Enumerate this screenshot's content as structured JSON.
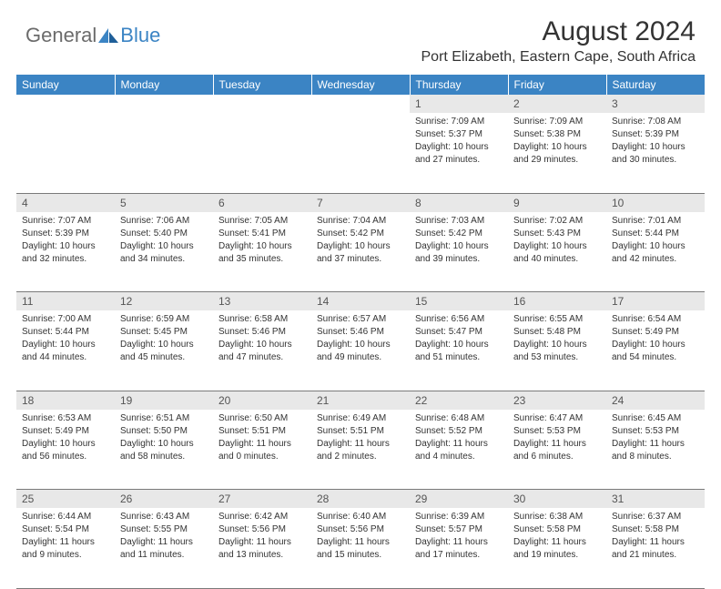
{
  "logo": {
    "text1": "General",
    "text2": "Blue"
  },
  "title": "August 2024",
  "location": "Port Elizabeth, Eastern Cape, South Africa",
  "colors": {
    "header_bg": "#3b84c4",
    "header_text": "#ffffff",
    "daynum_bg": "#e8e8e8",
    "daynum_text": "#555555",
    "body_text": "#333333",
    "border": "#7a7a7a",
    "logo_gray": "#6b6b6b",
    "logo_blue": "#3b84c4"
  },
  "days_of_week": [
    "Sunday",
    "Monday",
    "Tuesday",
    "Wednesday",
    "Thursday",
    "Friday",
    "Saturday"
  ],
  "weeks": [
    [
      null,
      null,
      null,
      null,
      {
        "n": "1",
        "sunrise": "7:09 AM",
        "sunset": "5:37 PM",
        "dl1": "Daylight: 10 hours",
        "dl2": "and 27 minutes."
      },
      {
        "n": "2",
        "sunrise": "7:09 AM",
        "sunset": "5:38 PM",
        "dl1": "Daylight: 10 hours",
        "dl2": "and 29 minutes."
      },
      {
        "n": "3",
        "sunrise": "7:08 AM",
        "sunset": "5:39 PM",
        "dl1": "Daylight: 10 hours",
        "dl2": "and 30 minutes."
      }
    ],
    [
      {
        "n": "4",
        "sunrise": "7:07 AM",
        "sunset": "5:39 PM",
        "dl1": "Daylight: 10 hours",
        "dl2": "and 32 minutes."
      },
      {
        "n": "5",
        "sunrise": "7:06 AM",
        "sunset": "5:40 PM",
        "dl1": "Daylight: 10 hours",
        "dl2": "and 34 minutes."
      },
      {
        "n": "6",
        "sunrise": "7:05 AM",
        "sunset": "5:41 PM",
        "dl1": "Daylight: 10 hours",
        "dl2": "and 35 minutes."
      },
      {
        "n": "7",
        "sunrise": "7:04 AM",
        "sunset": "5:42 PM",
        "dl1": "Daylight: 10 hours",
        "dl2": "and 37 minutes."
      },
      {
        "n": "8",
        "sunrise": "7:03 AM",
        "sunset": "5:42 PM",
        "dl1": "Daylight: 10 hours",
        "dl2": "and 39 minutes."
      },
      {
        "n": "9",
        "sunrise": "7:02 AM",
        "sunset": "5:43 PM",
        "dl1": "Daylight: 10 hours",
        "dl2": "and 40 minutes."
      },
      {
        "n": "10",
        "sunrise": "7:01 AM",
        "sunset": "5:44 PM",
        "dl1": "Daylight: 10 hours",
        "dl2": "and 42 minutes."
      }
    ],
    [
      {
        "n": "11",
        "sunrise": "7:00 AM",
        "sunset": "5:44 PM",
        "dl1": "Daylight: 10 hours",
        "dl2": "and 44 minutes."
      },
      {
        "n": "12",
        "sunrise": "6:59 AM",
        "sunset": "5:45 PM",
        "dl1": "Daylight: 10 hours",
        "dl2": "and 45 minutes."
      },
      {
        "n": "13",
        "sunrise": "6:58 AM",
        "sunset": "5:46 PM",
        "dl1": "Daylight: 10 hours",
        "dl2": "and 47 minutes."
      },
      {
        "n": "14",
        "sunrise": "6:57 AM",
        "sunset": "5:46 PM",
        "dl1": "Daylight: 10 hours",
        "dl2": "and 49 minutes."
      },
      {
        "n": "15",
        "sunrise": "6:56 AM",
        "sunset": "5:47 PM",
        "dl1": "Daylight: 10 hours",
        "dl2": "and 51 minutes."
      },
      {
        "n": "16",
        "sunrise": "6:55 AM",
        "sunset": "5:48 PM",
        "dl1": "Daylight: 10 hours",
        "dl2": "and 53 minutes."
      },
      {
        "n": "17",
        "sunrise": "6:54 AM",
        "sunset": "5:49 PM",
        "dl1": "Daylight: 10 hours",
        "dl2": "and 54 minutes."
      }
    ],
    [
      {
        "n": "18",
        "sunrise": "6:53 AM",
        "sunset": "5:49 PM",
        "dl1": "Daylight: 10 hours",
        "dl2": "and 56 minutes."
      },
      {
        "n": "19",
        "sunrise": "6:51 AM",
        "sunset": "5:50 PM",
        "dl1": "Daylight: 10 hours",
        "dl2": "and 58 minutes."
      },
      {
        "n": "20",
        "sunrise": "6:50 AM",
        "sunset": "5:51 PM",
        "dl1": "Daylight: 11 hours",
        "dl2": "and 0 minutes."
      },
      {
        "n": "21",
        "sunrise": "6:49 AM",
        "sunset": "5:51 PM",
        "dl1": "Daylight: 11 hours",
        "dl2": "and 2 minutes."
      },
      {
        "n": "22",
        "sunrise": "6:48 AM",
        "sunset": "5:52 PM",
        "dl1": "Daylight: 11 hours",
        "dl2": "and 4 minutes."
      },
      {
        "n": "23",
        "sunrise": "6:47 AM",
        "sunset": "5:53 PM",
        "dl1": "Daylight: 11 hours",
        "dl2": "and 6 minutes."
      },
      {
        "n": "24",
        "sunrise": "6:45 AM",
        "sunset": "5:53 PM",
        "dl1": "Daylight: 11 hours",
        "dl2": "and 8 minutes."
      }
    ],
    [
      {
        "n": "25",
        "sunrise": "6:44 AM",
        "sunset": "5:54 PM",
        "dl1": "Daylight: 11 hours",
        "dl2": "and 9 minutes."
      },
      {
        "n": "26",
        "sunrise": "6:43 AM",
        "sunset": "5:55 PM",
        "dl1": "Daylight: 11 hours",
        "dl2": "and 11 minutes."
      },
      {
        "n": "27",
        "sunrise": "6:42 AM",
        "sunset": "5:56 PM",
        "dl1": "Daylight: 11 hours",
        "dl2": "and 13 minutes."
      },
      {
        "n": "28",
        "sunrise": "6:40 AM",
        "sunset": "5:56 PM",
        "dl1": "Daylight: 11 hours",
        "dl2": "and 15 minutes."
      },
      {
        "n": "29",
        "sunrise": "6:39 AM",
        "sunset": "5:57 PM",
        "dl1": "Daylight: 11 hours",
        "dl2": "and 17 minutes."
      },
      {
        "n": "30",
        "sunrise": "6:38 AM",
        "sunset": "5:58 PM",
        "dl1": "Daylight: 11 hours",
        "dl2": "and 19 minutes."
      },
      {
        "n": "31",
        "sunrise": "6:37 AM",
        "sunset": "5:58 PM",
        "dl1": "Daylight: 11 hours",
        "dl2": "and 21 minutes."
      }
    ]
  ]
}
